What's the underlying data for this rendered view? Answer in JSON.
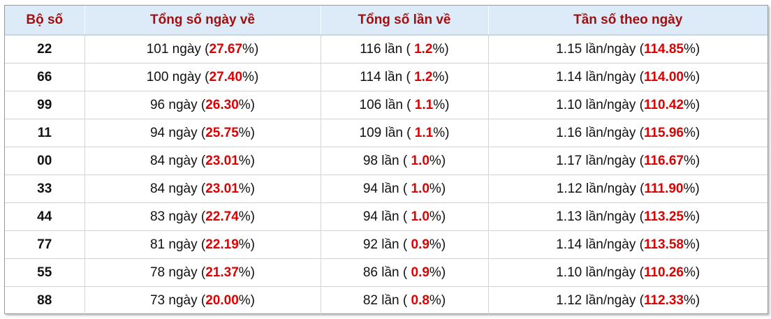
{
  "table": {
    "header": [
      "Bộ số",
      "Tổng số ngày về",
      "Tổng số lần về",
      "Tần số theo ngày"
    ],
    "rows": [
      [
        "22",
        [
          "101 ngày (",
          "27.67",
          "%)"
        ],
        [
          "116 lần ( ",
          "1.2",
          "%)"
        ],
        [
          "1.15 lần/ngày (",
          "114.85",
          "%)"
        ]
      ],
      [
        "66",
        [
          "100 ngày (",
          "27.40",
          "%)"
        ],
        [
          "114 lần ( ",
          "1.2",
          "%)"
        ],
        [
          "1.14 lần/ngày (",
          "114.00",
          "%)"
        ]
      ],
      [
        "99",
        [
          "96 ngày (",
          "26.30",
          "%)"
        ],
        [
          "106 lần ( ",
          "1.1",
          "%)"
        ],
        [
          "1.10 lần/ngày (",
          "110.42",
          "%)"
        ]
      ],
      [
        "11",
        [
          "94 ngày (",
          "25.75",
          "%)"
        ],
        [
          "109 lần ( ",
          "1.1",
          "%)"
        ],
        [
          "1.16 lần/ngày (",
          "115.96",
          "%)"
        ]
      ],
      [
        "00",
        [
          "84 ngày (",
          "23.01",
          "%)"
        ],
        [
          "98 lần ( ",
          "1.0",
          "%)"
        ],
        [
          "1.17 lần/ngày (",
          "116.67",
          "%)"
        ]
      ],
      [
        "33",
        [
          "84 ngày (",
          "23.01",
          "%)"
        ],
        [
          "94 lần ( ",
          "1.0",
          "%)"
        ],
        [
          "1.12 lần/ngày (",
          "111.90",
          "%)"
        ]
      ],
      [
        "44",
        [
          "83 ngày (",
          "22.74",
          "%)"
        ],
        [
          "94 lần ( ",
          "1.0",
          "%)"
        ],
        [
          "1.13 lần/ngày (",
          "113.25",
          "%)"
        ]
      ],
      [
        "77",
        [
          "81 ngày (",
          "22.19",
          "%)"
        ],
        [
          "92 lần ( ",
          "0.9",
          "%)"
        ],
        [
          "1.14 lần/ngày (",
          "113.58",
          "%)"
        ]
      ],
      [
        "55",
        [
          "78 ngày (",
          "21.37",
          "%)"
        ],
        [
          "86 lần ( ",
          "0.9",
          "%)"
        ],
        [
          "1.10 lần/ngày (",
          "110.26",
          "%)"
        ]
      ],
      [
        "88",
        [
          "73 ngày (",
          "20.00",
          "%)"
        ],
        [
          "82 lần ( ",
          "0.8",
          "%)"
        ],
        [
          "1.12 lần/ngày (",
          "112.33",
          "%)"
        ]
      ]
    ]
  }
}
